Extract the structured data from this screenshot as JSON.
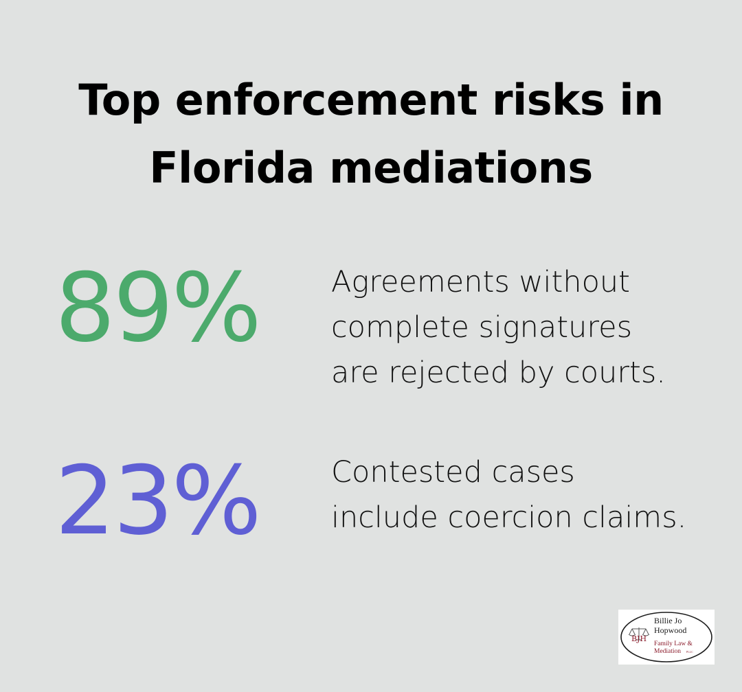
{
  "title": {
    "line1": "Top enforcement risks in",
    "line2": "Florida mediations"
  },
  "stats": [
    {
      "value": "89%",
      "color": "#4caa6c",
      "lines": [
        "Agreements without",
        "complete signatures",
        "are rejected by courts."
      ]
    },
    {
      "value": "23%",
      "color": "#5f5fd4",
      "lines": [
        "Contested cases",
        "include coercion claims."
      ]
    }
  ],
  "logo": {
    "name_line1": "Billie Jo",
    "name_line2": "Hopwood",
    "tagline1": "Family Law &",
    "tagline2": "Mediation",
    "suffix": "PLLC",
    "initials": "BJH",
    "accent_color": "#8a1a2a"
  }
}
